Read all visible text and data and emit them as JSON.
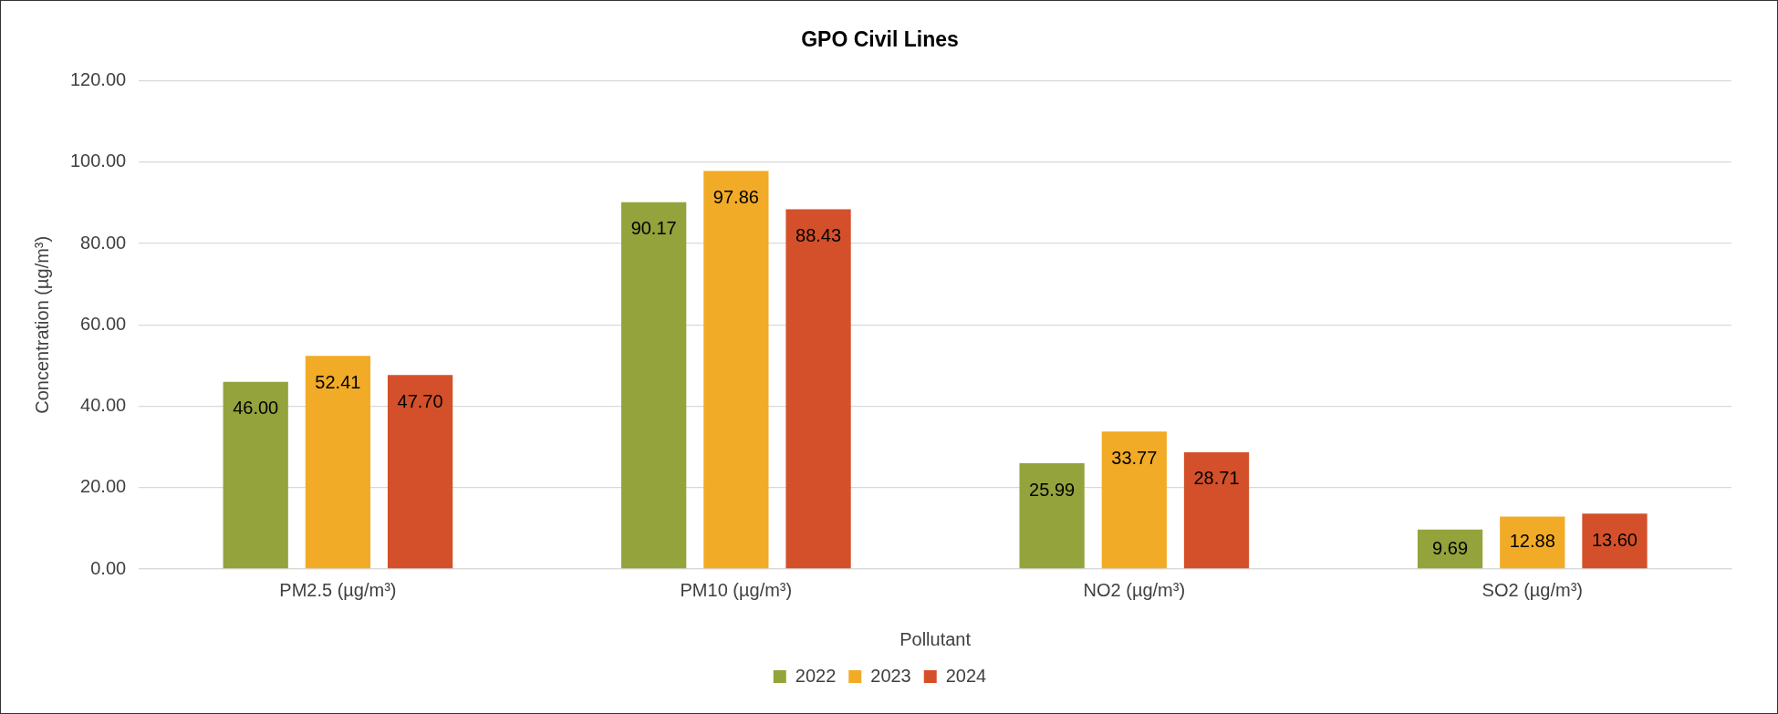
{
  "chart_data": {
    "type": "bar",
    "title": "GPO Civil Lines",
    "xlabel": "Pollutant",
    "ylabel": "Concentration (µg/m³)",
    "categories": [
      "PM2.5 (µg/m³)",
      "PM10 (µg/m³)",
      "NO2 (µg/m³)",
      "SO2 (µg/m³)"
    ],
    "series": [
      {
        "name": "2022",
        "color": "#94a33c",
        "values": [
          46.0,
          90.17,
          25.99,
          9.69
        ],
        "value_labels": [
          "46.00",
          "90.17",
          "25.99",
          "9.69"
        ]
      },
      {
        "name": "2023",
        "color": "#f2ab26",
        "values": [
          52.41,
          97.86,
          33.77,
          12.88
        ],
        "value_labels": [
          "52.41",
          "97.86",
          "33.77",
          "12.88"
        ]
      },
      {
        "name": "2024",
        "color": "#d4502a",
        "values": [
          47.7,
          88.43,
          28.71,
          13.6
        ],
        "value_labels": [
          "47.70",
          "88.43",
          "28.71",
          "13.60"
        ]
      }
    ],
    "ylim": [
      0,
      120
    ],
    "yticks": [
      {
        "value": 0,
        "label": "0.00"
      },
      {
        "value": 20,
        "label": "20.00"
      },
      {
        "value": 40,
        "label": "40.00"
      },
      {
        "value": 60,
        "label": "60.00"
      },
      {
        "value": 80,
        "label": "80.00"
      },
      {
        "value": 100,
        "label": "100.00"
      },
      {
        "value": 120,
        "label": "120.00"
      }
    ],
    "grid": "y",
    "legend": "bottom"
  }
}
